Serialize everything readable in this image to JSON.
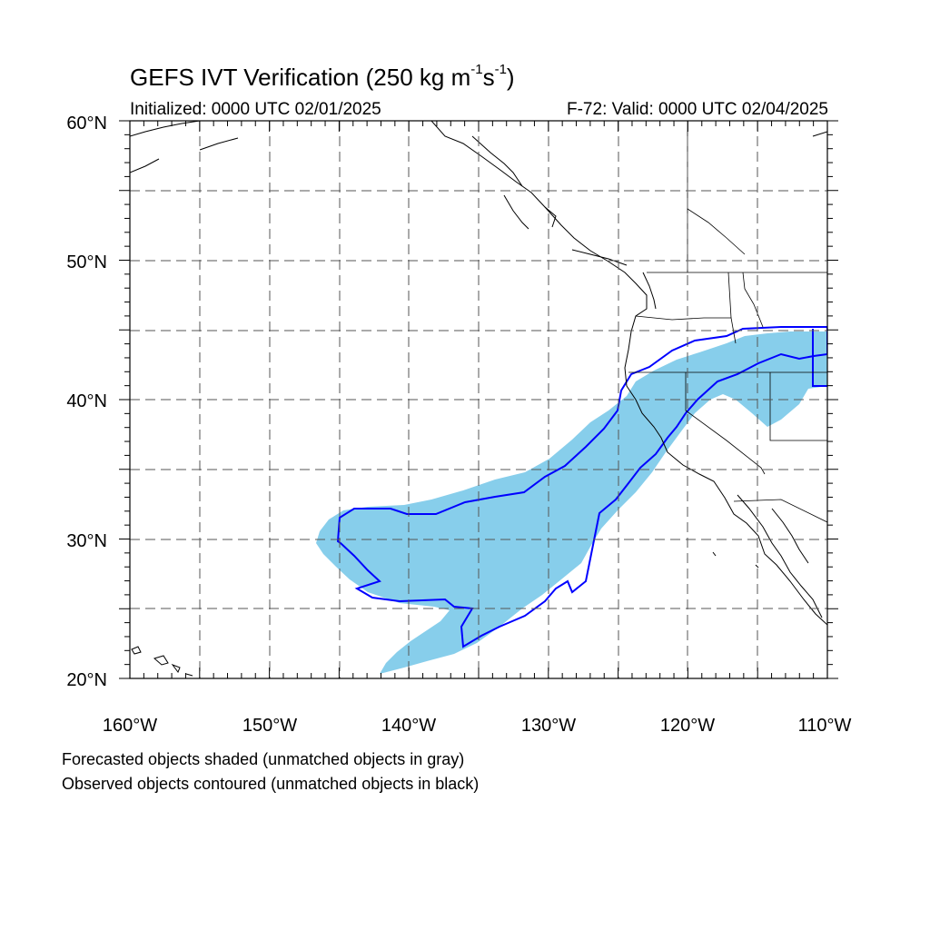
{
  "header": {
    "title_main": "GEFS IVT Verification (250 kg m",
    "title_sup1": "-1",
    "title_mid": "s",
    "title_sup2": "-1",
    "title_end": ")",
    "initialized": "Initialized: 0000 UTC 02/01/2025",
    "valid": "F-72: Valid: 0000 UTC 02/04/2025"
  },
  "axes": {
    "lat_labels": [
      "60°N",
      "50°N",
      "40°N",
      "30°N",
      "20°N"
    ],
    "lon_labels": [
      "160°W",
      "150°W",
      "140°W",
      "130°W",
      "120°W",
      "110°W"
    ],
    "lon_range": [
      -160,
      -110
    ],
    "lat_range": [
      20,
      60
    ],
    "grid": "dashed, every 5 degrees"
  },
  "notes": {
    "line1": "Forecasted objects shaded (unmatched objects in gray)",
    "line2": "Observed objects contoured (unmatched objects in black)"
  },
  "colors": {
    "forecast_fill": "#87ceeb",
    "observed_contour": "#0000ff",
    "coastline": "#000000",
    "grid": "#555555"
  }
}
